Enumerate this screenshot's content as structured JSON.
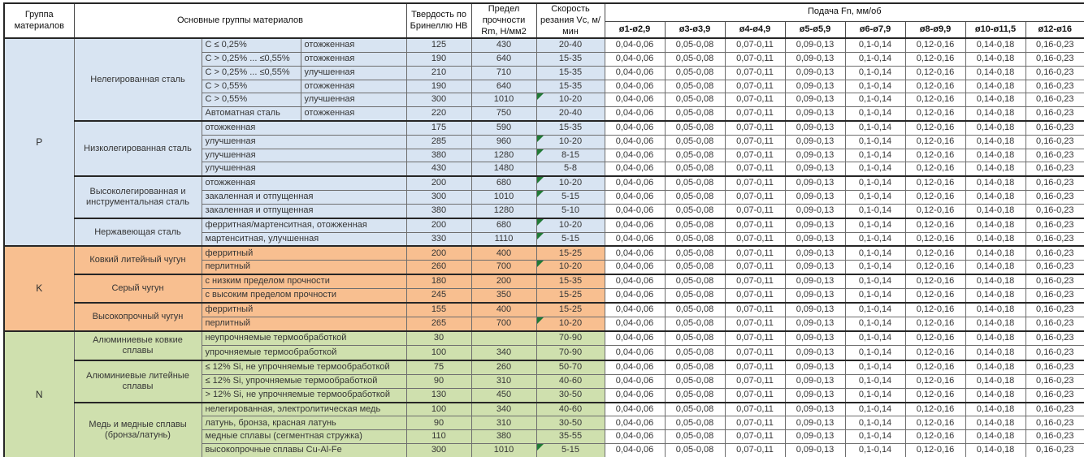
{
  "colors": {
    "group_p_bg": "#d8e4f2",
    "group_k_bg": "#f8bf90",
    "group_n_bg": "#cfe0ae",
    "flag_green": "#217a36",
    "grid_line": "#4a4a4a"
  },
  "table": {
    "header": {
      "col_group": "Группа материалов",
      "col_materials": "Основные группы материалов",
      "col_hb": "Твердость по Бринеллю HB",
      "col_rm": "Предел прочности Rm, Н/мм2",
      "col_vc": "Скорость резания Vc, м/мин",
      "feed_title": "Подача Fn, мм/об",
      "feed_cols": [
        "ø1-ø2,9",
        "ø3-ø3,9",
        "ø4-ø4,9",
        "ø5-ø5,9",
        "ø6-ø7,9",
        "ø8-ø9,9",
        "ø10-ø11,5",
        "ø12-ø16"
      ]
    },
    "feed_values": [
      "0,04-0,06",
      "0,05-0,08",
      "0,07-0,11",
      "0,09-0,13",
      "0,1-0,14",
      "0,12-0,16",
      "0,14-0,18",
      "0,16-0,23"
    ],
    "groups": [
      {
        "letter": "P",
        "bg": "#d8e4f2",
        "subgroups": [
          {
            "name": "Нелегированная сталь",
            "rows": [
              {
                "desc1": "C ≤ 0,25%",
                "desc2": "отожженная",
                "hb": "125",
                "rm": "430",
                "vc": "20-40",
                "flag": false
              },
              {
                "desc1": "C > 0,25% ... ≤0,55%",
                "desc2": "отожженная",
                "hb": "190",
                "rm": "640",
                "vc": "15-35",
                "flag": false
              },
              {
                "desc1": "C > 0,25% ... ≤0,55%",
                "desc2": "улучшенная",
                "hb": "210",
                "rm": "710",
                "vc": "15-35",
                "flag": false
              },
              {
                "desc1": "C > 0,55%",
                "desc2": "отожженная",
                "hb": "190",
                "rm": "640",
                "vc": "15-35",
                "flag": false
              },
              {
                "desc1": "C > 0,55%",
                "desc2": "улучшенная",
                "hb": "300",
                "rm": "1010",
                "vc": "10-20",
                "flag": true
              },
              {
                "desc1": "Автоматная сталь",
                "desc2": "отожженная",
                "hb": "220",
                "rm": "750",
                "vc": "20-40",
                "flag": false
              }
            ]
          },
          {
            "name": "Низколегированная сталь",
            "rows": [
              {
                "desc": "отожженная",
                "hb": "175",
                "rm": "590",
                "vc": "15-35",
                "flag": false
              },
              {
                "desc": "улучшенная",
                "hb": "285",
                "rm": "960",
                "vc": "10-20",
                "flag": true
              },
              {
                "desc": "улучшенная",
                "hb": "380",
                "rm": "1280",
                "vc": "8-15",
                "flag": true
              },
              {
                "desc": "улучшенная",
                "hb": "430",
                "rm": "1480",
                "vc": "5-8",
                "flag": false
              }
            ]
          },
          {
            "name": "Высоколегированная и инструментальная сталь",
            "rows": [
              {
                "desc": "отожженная",
                "hb": "200",
                "rm": "680",
                "vc": "10-20",
                "flag": true
              },
              {
                "desc": "закаленная и отпущенная",
                "hb": "300",
                "rm": "1010",
                "vc": "5-15",
                "flag": true
              },
              {
                "desc": "закаленная и отпущенная",
                "hb": "380",
                "rm": "1280",
                "vc": "5-10",
                "flag": false
              }
            ]
          },
          {
            "name": "Нержавеющая сталь",
            "rows": [
              {
                "desc": "ферритная/мартенситная, отожженная",
                "hb": "200",
                "rm": "680",
                "vc": "10-20",
                "flag": true
              },
              {
                "desc": "мартенситная, улучшенная",
                "hb": "330",
                "rm": "1110",
                "vc": "5-15",
                "flag": true
              }
            ]
          }
        ]
      },
      {
        "letter": "K",
        "bg": "#f8bf90",
        "subgroups": [
          {
            "name": "Ковкий литейный чугун",
            "rows": [
              {
                "desc": "ферритный",
                "hb": "200",
                "rm": "400",
                "vc": "15-25",
                "flag": false
              },
              {
                "desc": "перлитный",
                "hb": "260",
                "rm": "700",
                "vc": "10-20",
                "flag": true
              }
            ]
          },
          {
            "name": "Серый чугун",
            "rows": [
              {
                "desc": "с низким пределом прочности",
                "hb": "180",
                "rm": "200",
                "vc": "15-35",
                "flag": false
              },
              {
                "desc": "с высоким пределом прочности",
                "hb": "245",
                "rm": "350",
                "vc": "15-25",
                "flag": false
              }
            ]
          },
          {
            "name": "Высокопрочный чугун",
            "rows": [
              {
                "desc": "ферритный",
                "hb": "155",
                "rm": "400",
                "vc": "15-25",
                "flag": false
              },
              {
                "desc": "перлитный",
                "hb": "265",
                "rm": "700",
                "vc": "10-20",
                "flag": true
              }
            ]
          }
        ]
      },
      {
        "letter": "N",
        "bg": "#cfe0ae",
        "subgroups": [
          {
            "name": "Алюминиевые ковкие сплавы",
            "rows": [
              {
                "desc": "неупрочняемые термообработкой",
                "hb": "30",
                "rm": "",
                "vc": "70-90",
                "flag": false
              },
              {
                "desc": "упрочняемые термообработкой",
                "hb": "100",
                "rm": "340",
                "vc": "70-90",
                "flag": false
              }
            ]
          },
          {
            "name": "Алюминиевые литейные сплавы",
            "rows": [
              {
                "desc": "≤ 12% Si, не упрочняемые термообработкой",
                "hb": "75",
                "rm": "260",
                "vc": "50-70",
                "flag": false
              },
              {
                "desc": "≤ 12% Si, упрочняемые термообработкой",
                "hb": "90",
                "rm": "310",
                "vc": "40-60",
                "flag": false
              },
              {
                "desc": "> 12% Si, не упрочняемые термообработкой",
                "hb": "130",
                "rm": "450",
                "vc": "30-50",
                "flag": false
              }
            ]
          },
          {
            "name": "Медь и медные сплавы (бронза/латунь)",
            "rows": [
              {
                "desc": "нелегированная, электролитическая медь",
                "hb": "100",
                "rm": "340",
                "vc": "40-60",
                "flag": false
              },
              {
                "desc": "латунь, бронза, красная латунь",
                "hb": "90",
                "rm": "310",
                "vc": "30-50",
                "flag": false
              },
              {
                "desc": "медные сплавы (сегментная стружка)",
                "hb": "110",
                "rm": "380",
                "vc": "35-55",
                "flag": false
              },
              {
                "desc": "высокопрочные сплавы Cu-Al-Fe",
                "hb": "300",
                "rm": "1010",
                "vc": "5-15",
                "flag": true
              }
            ]
          }
        ]
      }
    ]
  }
}
